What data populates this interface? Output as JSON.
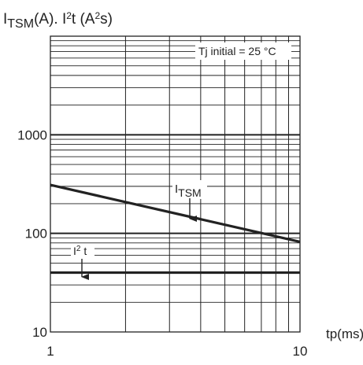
{
  "chart_data": {
    "type": "line",
    "title": {
      "part1_main": "I",
      "part1_sub": "TSM",
      "part1_rest": "(A). I",
      "part2_sup": "2",
      "part2_rest": "t (A",
      "part3_sup": "2",
      "part3_rest": "s)"
    },
    "xlabel": "tp(ms)",
    "x_scale": "log",
    "y_scale": "log",
    "xlim": [
      1,
      10
    ],
    "ylim": [
      10,
      10000
    ],
    "x_tick_labels": [
      "1",
      "10"
    ],
    "y_tick_labels": [
      "10",
      "100",
      "1000"
    ],
    "annotation": "Tj initial = 25 °C",
    "series": [
      {
        "label_main": "I",
        "label_sub": "TSM",
        "x": [
          1,
          10
        ],
        "y": [
          310,
          82
        ]
      },
      {
        "label_main": "I",
        "label_sup": "2",
        "label_rest": " t",
        "x": [
          1,
          10
        ],
        "y": [
          40,
          40
        ]
      }
    ],
    "colors": {
      "line": "#222222",
      "grid": "#222222",
      "background": "#ffffff"
    }
  }
}
